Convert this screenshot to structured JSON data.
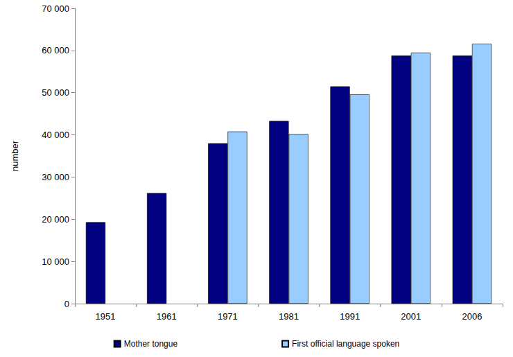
{
  "chart_data": {
    "type": "bar",
    "categories": [
      "1951",
      "1961",
      "1971",
      "1981",
      "1991",
      "2001",
      "2006"
    ],
    "series": [
      {
        "name": "Mother tongue",
        "color": "#000080",
        "values": [
          19300,
          26200,
          38000,
          43300,
          51500,
          58800,
          58800
        ]
      },
      {
        "name": "First official language spoken",
        "color": "#99ccff",
        "values": [
          null,
          null,
          40800,
          40200,
          49600,
          59500,
          61600
        ]
      }
    ],
    "y_label": "number",
    "ylim": [
      0,
      70000
    ],
    "yticks": [
      0,
      {
        "value": 10000,
        "label": "10 000"
      },
      {
        "value": 20000,
        "label": "20 000"
      },
      {
        "value": 30000,
        "label": "30 000"
      },
      {
        "value": 40000,
        "label": "40 000"
      },
      {
        "value": 50000,
        "label": "50 000"
      },
      {
        "value": 60000,
        "label": "60 000"
      },
      {
        "value": 70000,
        "label": "70 000"
      }
    ],
    "grid": false,
    "legend": "bottom"
  }
}
